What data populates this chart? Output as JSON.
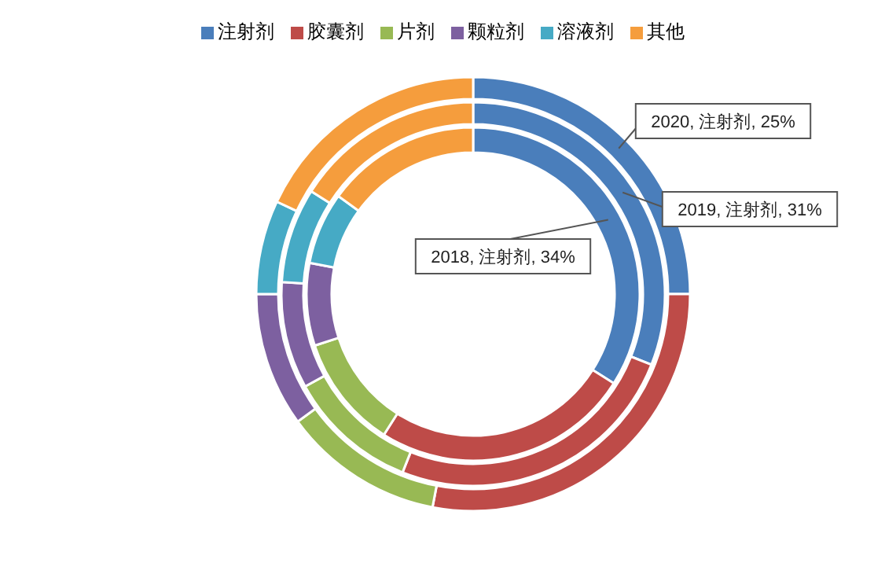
{
  "chart_data": {
    "type": "donut",
    "categories": [
      "注射剂",
      "胶囊剂",
      "片剂",
      "颗粒剂",
      "溶液剂",
      "其他"
    ],
    "colors": [
      "#4a7ebb",
      "#be4b48",
      "#98b954",
      "#7d60a0",
      "#46aac5",
      "#f59d3d"
    ],
    "legend": "top",
    "series": [
      {
        "values": [
          34,
          25,
          11,
          8,
          7,
          15
        ],
        "value_labels": [
          "2018, 注射剂, 34%",
          null,
          null,
          null,
          null,
          null
        ]
      },
      {
        "values": [
          31,
          25,
          11,
          9,
          8,
          16
        ],
        "value_labels": [
          "2019, 注射剂, 31%",
          null,
          null,
          null,
          null,
          null
        ]
      },
      {
        "values": [
          25,
          28,
          12,
          10,
          7,
          18
        ],
        "value_labels": [
          "2020, 注射剂, 25%",
          null,
          null,
          null,
          null,
          null
        ]
      }
    ]
  }
}
